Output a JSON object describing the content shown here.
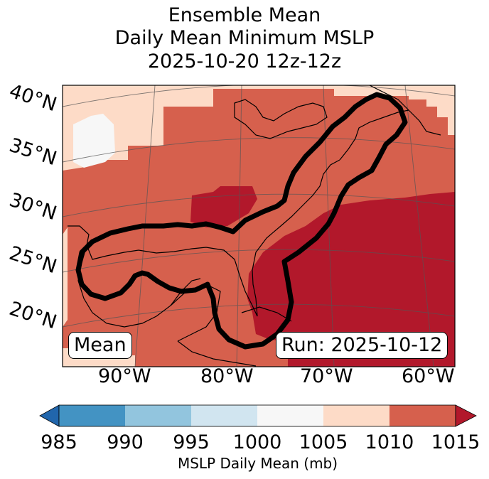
{
  "title": {
    "line1": "Ensemble Mean",
    "line2": "Daily Mean Minimum MSLP",
    "line3": "2025-10-20 12z-12z"
  },
  "map": {
    "lat_labels": [
      "40°N",
      "35°N",
      "30°N",
      "25°N",
      "20°N"
    ],
    "lon_labels": [
      "90°W",
      "80°W",
      "70°W",
      "60°W"
    ],
    "mean_box": "Mean",
    "run_box": "Run: 2025-10-12",
    "colors": {
      "c1005_1010": "#fddbc7",
      "c1010_1015": "#d6604d",
      "c1015plus": "#b2182b",
      "c1000_1005": "#f7f7f7",
      "contour": "#000000"
    }
  },
  "colorbar": {
    "ticks": [
      "985",
      "990",
      "995",
      "1000",
      "1005",
      "1010",
      "1015"
    ],
    "colors": [
      "#2166ac",
      "#4393c3",
      "#92c5de",
      "#d1e5f0",
      "#f7f7f7",
      "#fddbc7",
      "#d6604d",
      "#b2182b"
    ],
    "label": "MSLP Daily Mean (mb)"
  }
}
